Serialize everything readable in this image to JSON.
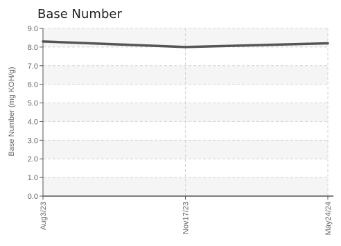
{
  "chart_data": {
    "type": "line",
    "title": "Base Number",
    "xlabel": "",
    "ylabel": "Base Number (mg KOH/g)",
    "categories": [
      "Aug3/23",
      "Nov17/23",
      "May24/24"
    ],
    "series": [
      {
        "values": [
          8.3,
          8.0,
          8.2
        ]
      }
    ],
    "ylim": [
      0,
      9
    ],
    "y_ticks": [
      "0.0",
      "1.0",
      "2.0",
      "3.0",
      "4.0",
      "5.0",
      "6.0",
      "7.0",
      "8.0",
      "9.0"
    ],
    "grid": true,
    "legend": "none",
    "colors": {
      "line": "#555555",
      "band": "#f5f5f5",
      "grid": "#d3d3d3",
      "axis": "#555555",
      "text": "#666666",
      "title": "#222222"
    }
  }
}
